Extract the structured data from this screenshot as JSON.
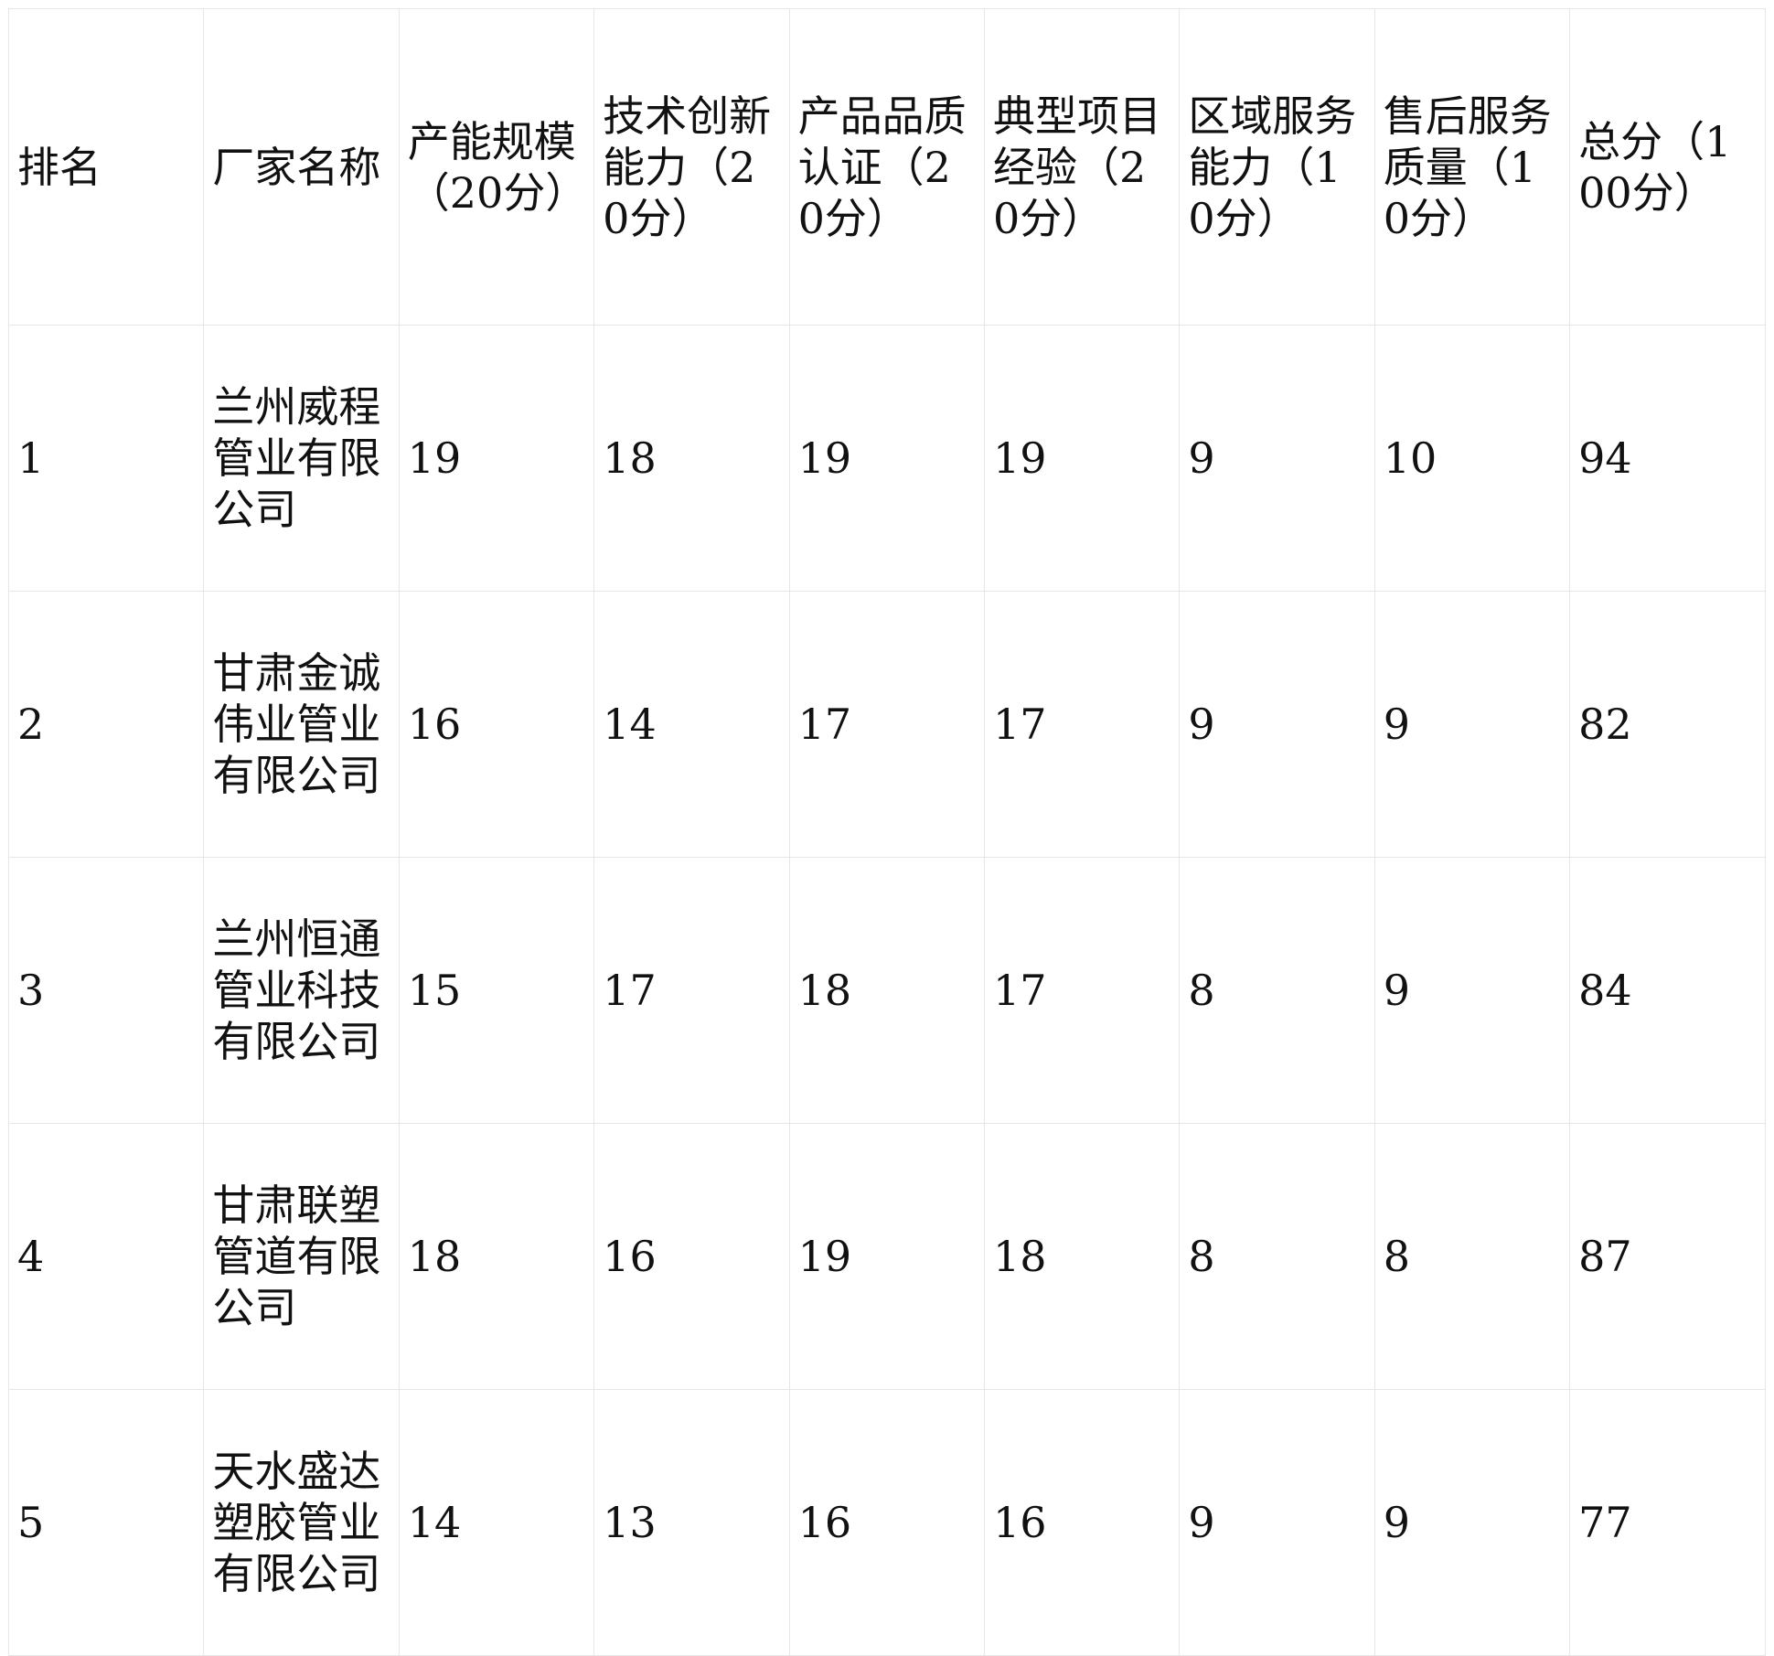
{
  "table": {
    "headers": [
      "排名",
      "厂家名称",
      "产能规模（20分）",
      "技术创新能力（20分）",
      "产品品质认证（20分）",
      "典型项目经验（20分）",
      "区域服务能力（10分）",
      "售后服务质量（10分）",
      "总分（100分）"
    ],
    "rows": [
      [
        1,
        "兰州威程管业有限公司",
        19,
        18,
        19,
        19,
        9,
        10,
        94
      ],
      [
        2,
        "甘肃金诚伟业管业有限公司",
        16,
        14,
        17,
        17,
        9,
        9,
        82
      ],
      [
        3,
        "兰州恒通管业科技有限公司",
        15,
        17,
        18,
        17,
        8,
        9,
        84
      ],
      [
        4,
        "甘肃联塑管道有限公司",
        18,
        16,
        19,
        18,
        8,
        8,
        87
      ],
      [
        5,
        "天水盛达塑胶管业有限公司",
        14,
        13,
        16,
        16,
        9,
        9,
        77
      ]
    ]
  }
}
